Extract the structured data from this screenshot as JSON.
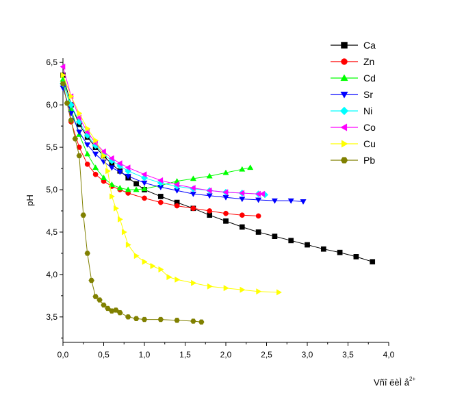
{
  "chart_data": {
    "type": "line",
    "title": "",
    "xlabel": "Vñî ëèÌ å",
    "xlabel_sup": "2+",
    "ylabel": "pH",
    "xlim": [
      0,
      4.0
    ],
    "ylim": [
      3.2,
      6.55
    ],
    "x_ticks": [
      "0,0",
      "0,5",
      "1,0",
      "1,5",
      "2,0",
      "2,5",
      "3,0",
      "3,5",
      "4,0"
    ],
    "y_ticks": [
      "3,5",
      "4,0",
      "4,5",
      "5,0",
      "5,5",
      "6,0",
      "6,5"
    ],
    "grid": false,
    "legend_position": "top-right",
    "series": [
      {
        "name": "Ca",
        "color": "#000000",
        "marker": "square",
        "x": [
          0.0,
          0.1,
          0.2,
          0.3,
          0.4,
          0.5,
          0.6,
          0.7,
          0.8,
          0.9,
          1.0,
          1.2,
          1.4,
          1.6,
          1.8,
          2.0,
          2.2,
          2.4,
          2.6,
          2.8,
          3.0,
          3.2,
          3.4,
          3.6,
          3.8
        ],
        "y": [
          6.35,
          6.0,
          5.77,
          5.62,
          5.5,
          5.4,
          5.3,
          5.22,
          5.14,
          5.07,
          5.0,
          4.92,
          4.85,
          4.78,
          4.7,
          4.63,
          4.56,
          4.5,
          4.45,
          4.4,
          4.35,
          4.3,
          4.26,
          4.21,
          4.15
        ]
      },
      {
        "name": "Zn",
        "color": "#ff0000",
        "marker": "circle",
        "x": [
          0.0,
          0.1,
          0.2,
          0.3,
          0.4,
          0.5,
          0.6,
          0.7,
          0.8,
          1.0,
          1.2,
          1.4,
          1.6,
          1.8,
          2.0,
          2.2,
          2.4
        ],
        "y": [
          6.25,
          5.8,
          5.5,
          5.3,
          5.18,
          5.1,
          5.04,
          5.0,
          4.96,
          4.9,
          4.85,
          4.81,
          4.78,
          4.75,
          4.72,
          4.7,
          4.69
        ]
      },
      {
        "name": "Cd",
        "color": "#00ff00",
        "marker": "triangle-up",
        "x": [
          0.0,
          0.1,
          0.2,
          0.3,
          0.4,
          0.5,
          0.6,
          0.7,
          0.8,
          0.9,
          1.0,
          1.2,
          1.4,
          1.6,
          1.8,
          2.0,
          2.2,
          2.3
        ],
        "y": [
          6.3,
          5.95,
          5.65,
          5.42,
          5.26,
          5.14,
          5.06,
          5.02,
          5.0,
          5.0,
          5.01,
          5.05,
          5.1,
          5.13,
          5.16,
          5.2,
          5.24,
          5.26
        ]
      },
      {
        "name": "Sr",
        "color": "#0000ff",
        "marker": "triangle-down",
        "x": [
          0.0,
          0.1,
          0.2,
          0.3,
          0.4,
          0.5,
          0.6,
          0.7,
          0.8,
          1.0,
          1.2,
          1.4,
          1.6,
          1.8,
          2.0,
          2.2,
          2.4,
          2.6,
          2.8,
          2.95
        ],
        "y": [
          6.2,
          5.9,
          5.68,
          5.53,
          5.42,
          5.33,
          5.26,
          5.21,
          5.16,
          5.08,
          5.03,
          4.99,
          4.95,
          4.93,
          4.91,
          4.89,
          4.88,
          4.87,
          4.87,
          4.86
        ]
      },
      {
        "name": "Ni",
        "color": "#00ffff",
        "marker": "diamond",
        "x": [
          0.0,
          0.1,
          0.2,
          0.3,
          0.4,
          0.5,
          0.6,
          0.7,
          0.8,
          1.0,
          1.2,
          1.4,
          1.6,
          1.8,
          2.0,
          2.2,
          2.4,
          2.48
        ],
        "y": [
          6.25,
          6.0,
          5.8,
          5.64,
          5.52,
          5.42,
          5.34,
          5.28,
          5.22,
          5.14,
          5.08,
          5.04,
          5.01,
          4.99,
          4.97,
          4.96,
          4.95,
          4.94
        ]
      },
      {
        "name": "Co",
        "color": "#ff00ff",
        "marker": "triangle-left",
        "x": [
          0.0,
          0.1,
          0.2,
          0.3,
          0.4,
          0.5,
          0.6,
          0.7,
          0.8,
          1.0,
          1.2,
          1.4,
          1.6,
          1.8,
          2.0,
          2.2,
          2.4,
          2.45
        ],
        "y": [
          6.45,
          6.1,
          5.85,
          5.68,
          5.55,
          5.45,
          5.37,
          5.31,
          5.26,
          5.18,
          5.11,
          5.06,
          5.02,
          4.99,
          4.97,
          4.96,
          4.95,
          4.95
        ]
      },
      {
        "name": "Cu",
        "color": "#ffff00",
        "marker": "triangle-right",
        "x": [
          0.0,
          0.1,
          0.2,
          0.3,
          0.4,
          0.5,
          0.55,
          0.6,
          0.65,
          0.7,
          0.75,
          0.8,
          0.9,
          1.0,
          1.1,
          1.2,
          1.3,
          1.4,
          1.6,
          1.8,
          2.0,
          2.2,
          2.4,
          2.65
        ],
        "y": [
          6.35,
          6.1,
          5.9,
          5.72,
          5.58,
          5.4,
          5.22,
          4.92,
          4.78,
          4.65,
          4.5,
          4.35,
          4.22,
          4.15,
          4.1,
          4.06,
          3.97,
          3.94,
          3.9,
          3.86,
          3.84,
          3.82,
          3.8,
          3.79
        ]
      },
      {
        "name": "Pb",
        "color": "#808000",
        "marker": "hexagon",
        "x": [
          0.0,
          0.05,
          0.1,
          0.15,
          0.2,
          0.25,
          0.3,
          0.35,
          0.4,
          0.45,
          0.5,
          0.55,
          0.6,
          0.65,
          0.7,
          0.8,
          0.9,
          1.0,
          1.2,
          1.4,
          1.6,
          1.7
        ],
        "y": [
          6.25,
          6.02,
          5.82,
          5.6,
          5.4,
          4.7,
          4.25,
          3.93,
          3.74,
          3.7,
          3.64,
          3.6,
          3.57,
          3.58,
          3.55,
          3.5,
          3.48,
          3.47,
          3.47,
          3.46,
          3.45,
          3.44
        ]
      }
    ]
  }
}
